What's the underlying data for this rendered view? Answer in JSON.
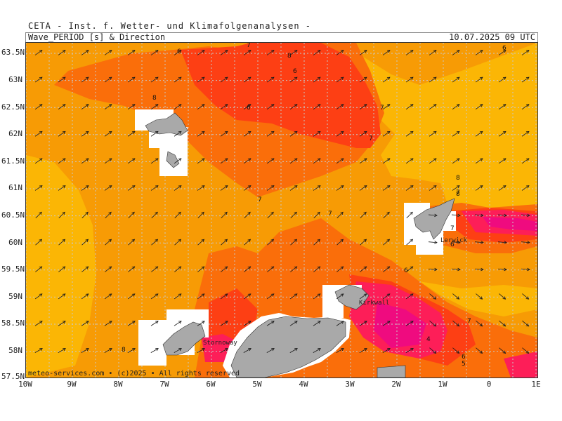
{
  "header": {
    "institute": "CETA - Inst. f. Wetter- und Klimafolgenanalysen -",
    "parameter": "Wave_PERIOD [s] & Direction",
    "timestamp": "10.07.2025 09 UTC"
  },
  "credit": "meteo-services.com • (c)2025 • All rights reserved",
  "axes": {
    "lat_labels": [
      "63.5N",
      "63N",
      "62.5N",
      "62N",
      "61.5N",
      "61N",
      "60.5N",
      "60N",
      "59.5N",
      "59N",
      "58.5N",
      "58N",
      "57.5N"
    ],
    "lon_labels": [
      "10W",
      "9W",
      "8W",
      "7W",
      "6W",
      "5W",
      "4W",
      "3W",
      "2W",
      "1W",
      "0",
      "1E"
    ]
  },
  "place_names": {
    "stornoway": "Stornoway",
    "kirkwall": "Kirkwall",
    "lerwick": "Lerwick"
  },
  "contour_values": [
    "6",
    "7",
    "8",
    "6",
    "6",
    "7",
    "8",
    "6",
    "7",
    "7",
    "7",
    "8",
    "7",
    "6",
    "7",
    "6",
    "4",
    "7",
    "6",
    "5",
    "8",
    "8"
  ],
  "colors": {
    "period_7_8": "#f79b05",
    "period_8_plus": "#fbb605",
    "period_6_7": "#fa6e0a",
    "period_5_6": "#fd3f14",
    "period_4_5": "#fd1e58",
    "period_lt_4": "#ef0b7f",
    "land": "#a9a9a9",
    "arrow": "#1a1a1a",
    "grid": "#c8c8c8"
  }
}
